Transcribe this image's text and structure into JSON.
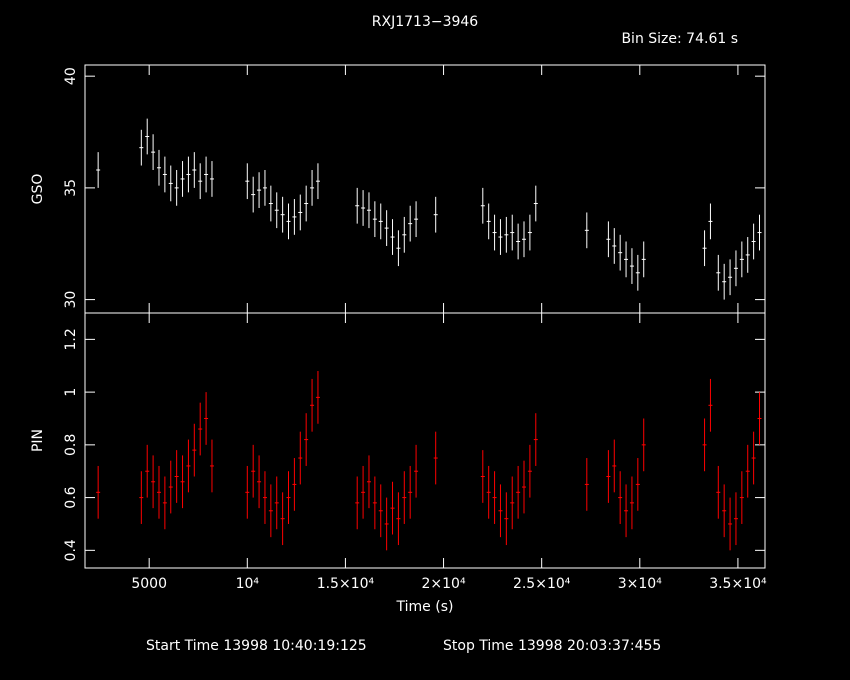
{
  "chart_data": [
    {
      "type": "errorbar",
      "title": "RXJ1713−3946",
      "annotation": "Bin Size: 74.61 s",
      "ylabel": "GSO",
      "x": [
        2400,
        4600,
        4900,
        5200,
        5500,
        5800,
        6100,
        6400,
        6700,
        7000,
        7300,
        7600,
        7900,
        8200,
        10000,
        10300,
        10600,
        10900,
        11200,
        11500,
        11800,
        12100,
        12400,
        12700,
        13000,
        13300,
        13600,
        15600,
        15900,
        16200,
        16500,
        16800,
        17100,
        17400,
        17700,
        18000,
        18300,
        18600,
        19600,
        22000,
        22300,
        22600,
        22900,
        23200,
        23500,
        23800,
        24100,
        24400,
        24700,
        27300,
        28400,
        28700,
        29000,
        29300,
        29600,
        29900,
        30200,
        33300,
        33600,
        34000,
        34300,
        34600,
        34900,
        35200,
        35500,
        35800,
        36100
      ],
      "xlim": [
        1730,
        36380
      ],
      "ylim": [
        29.4,
        40.5
      ],
      "yticks": [
        30,
        35,
        40
      ],
      "series": [
        {
          "name": "GSO",
          "color": "#ffffff",
          "error": 0.8,
          "values": [
            35.8,
            36.8,
            37.3,
            36.6,
            35.9,
            35.6,
            35.2,
            35.0,
            35.4,
            35.6,
            35.8,
            35.3,
            35.6,
            35.4,
            35.3,
            34.7,
            34.9,
            35.0,
            34.3,
            34.0,
            33.8,
            33.5,
            33.7,
            33.9,
            34.3,
            35.0,
            35.3,
            34.2,
            34.1,
            34.0,
            33.6,
            33.5,
            33.2,
            32.8,
            32.3,
            32.9,
            33.4,
            33.6,
            33.8,
            34.2,
            33.5,
            33.0,
            32.8,
            32.9,
            33.0,
            32.6,
            32.7,
            33.0,
            34.3,
            33.1,
            32.7,
            32.4,
            32.1,
            31.8,
            31.5,
            31.2,
            31.8,
            32.3,
            33.5,
            31.2,
            30.8,
            31.0,
            31.4,
            31.8,
            32.0,
            32.6,
            33.0
          ]
        }
      ]
    },
    {
      "type": "errorbar",
      "ylabel": "PIN",
      "xlabel": "Time (s)",
      "x": [
        2400,
        4600,
        4900,
        5200,
        5500,
        5800,
        6100,
        6400,
        6700,
        7000,
        7300,
        7600,
        7900,
        8200,
        10000,
        10300,
        10600,
        10900,
        11200,
        11500,
        11800,
        12100,
        12400,
        12700,
        13000,
        13300,
        13600,
        15600,
        15900,
        16200,
        16500,
        16800,
        17100,
        17400,
        17700,
        18000,
        18300,
        18600,
        19600,
        22000,
        22300,
        22600,
        22900,
        23200,
        23500,
        23800,
        24100,
        24400,
        24700,
        27300,
        28400,
        28700,
        29000,
        29300,
        29600,
        29900,
        30200,
        33300,
        33600,
        34000,
        34300,
        34600,
        34900,
        35200,
        35500,
        35800,
        36100
      ],
      "xlim": [
        1730,
        36380
      ],
      "ylim": [
        0.333,
        1.3
      ],
      "yticks": [
        0.4,
        0.6,
        0.8,
        1,
        1.2
      ],
      "xticks": [
        5000,
        {
          "value": 10000,
          "label": "10⁴"
        },
        {
          "value": 15000,
          "label": "1.5×10⁴"
        },
        {
          "value": 20000,
          "label": "2×10⁴"
        },
        {
          "value": 25000,
          "label": "2.5×10⁴"
        },
        {
          "value": 30000,
          "label": "3×10⁴"
        },
        {
          "value": 35000,
          "label": "3.5×10⁴"
        }
      ],
      "series": [
        {
          "name": "PIN",
          "color": "#ff0000",
          "error": 0.1,
          "values": [
            0.62,
            0.6,
            0.7,
            0.66,
            0.62,
            0.58,
            0.64,
            0.68,
            0.66,
            0.72,
            0.78,
            0.86,
            0.9,
            0.72,
            0.62,
            0.7,
            0.66,
            0.6,
            0.55,
            0.58,
            0.52,
            0.6,
            0.65,
            0.75,
            0.82,
            0.95,
            0.98,
            0.58,
            0.62,
            0.66,
            0.58,
            0.55,
            0.5,
            0.56,
            0.52,
            0.6,
            0.62,
            0.7,
            0.75,
            0.68,
            0.62,
            0.6,
            0.55,
            0.52,
            0.58,
            0.62,
            0.64,
            0.7,
            0.82,
            0.65,
            0.68,
            0.72,
            0.6,
            0.55,
            0.58,
            0.65,
            0.8,
            0.8,
            0.95,
            0.62,
            0.55,
            0.5,
            0.52,
            0.6,
            0.7,
            0.75,
            0.9
          ]
        }
      ]
    }
  ],
  "footer": {
    "start": "Start Time 13998 10:40:19:125",
    "stop": "Stop Time 13998 20:03:37:455"
  }
}
